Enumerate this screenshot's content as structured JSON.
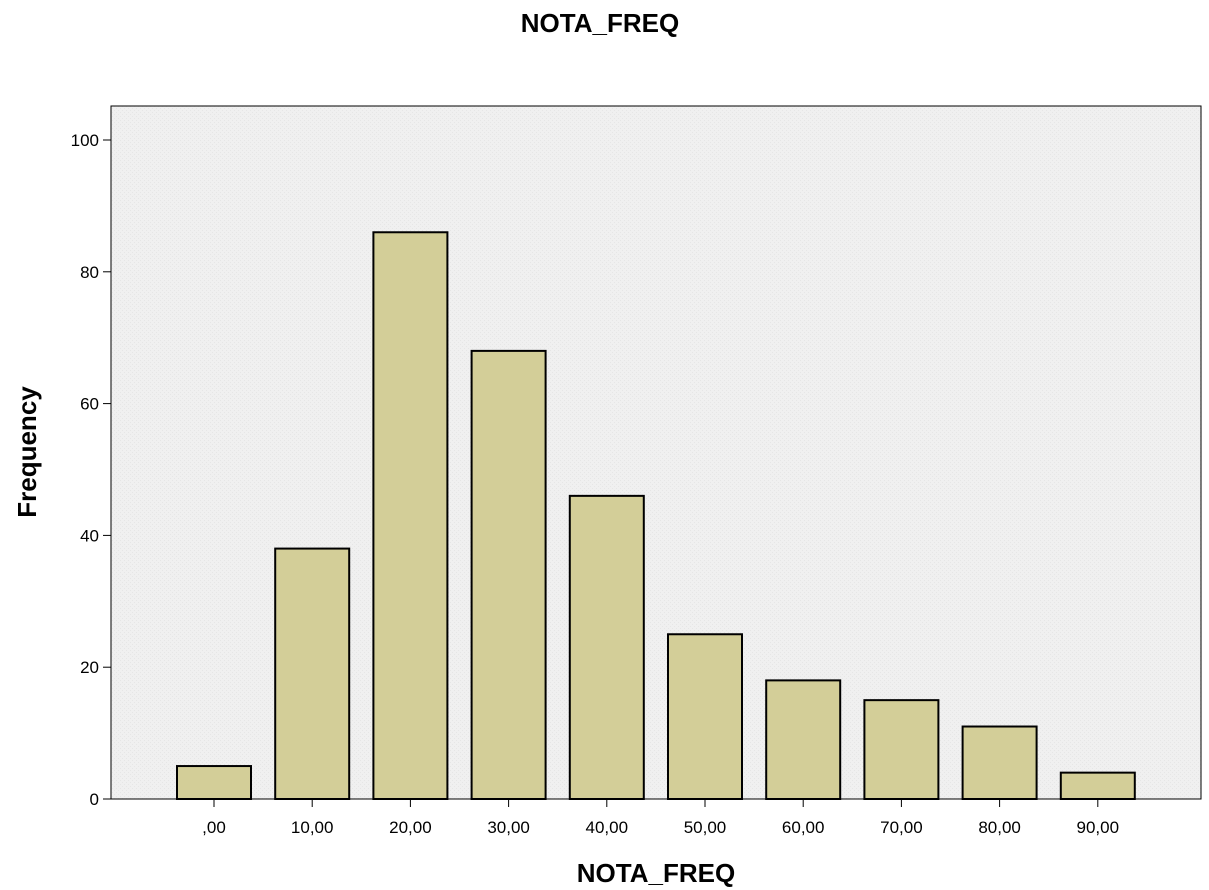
{
  "chart_data": {
    "type": "bar",
    "title": "NOTA_FREQ",
    "xlabel": "NOTA_FREQ",
    "ylabel": "Frequency",
    "categories": [
      ",00",
      "10,00",
      "20,00",
      "30,00",
      "40,00",
      "50,00",
      "60,00",
      "70,00",
      "80,00",
      "90,00"
    ],
    "values": [
      5,
      38,
      86,
      68,
      46,
      25,
      18,
      15,
      11,
      4
    ],
    "ylim": [
      0,
      100
    ],
    "yticks": [
      0,
      20,
      40,
      60,
      80,
      100
    ],
    "grid": false,
    "legend": "none",
    "colors": {
      "bar_fill": "#d3ce98",
      "bar_stroke": "#000000",
      "plot_background": "#f0f0f0",
      "page_background": "#ffffff",
      "axis": "#000000"
    }
  }
}
